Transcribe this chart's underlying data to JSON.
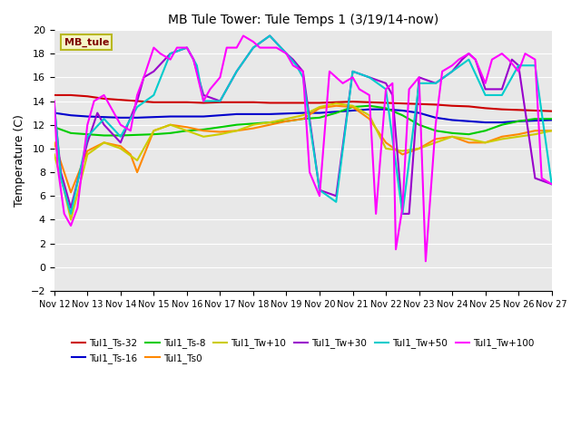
{
  "title": "MB Tule Tower: Tule Temps 1 (3/19/14-now)",
  "ylabel": "Temperature (C)",
  "ylim": [
    -2,
    20
  ],
  "yticks": [
    -2,
    0,
    2,
    4,
    6,
    8,
    10,
    12,
    14,
    16,
    18,
    20
  ],
  "xlim": [
    0,
    15
  ],
  "xtick_labels": [
    "Nov 12",
    "Nov 13",
    "Nov 14",
    "Nov 15",
    "Nov 16",
    "Nov 17",
    "Nov 18",
    "Nov 19",
    "Nov 20",
    "Nov 21",
    "Nov 22",
    "Nov 23",
    "Nov 24",
    "Nov 25",
    "Nov 26",
    "Nov 27"
  ],
  "bg_color": "#e8e8e8",
  "inset_label": "MB_tule",
  "inset_bg": "#f5f5c8",
  "inset_border": "#b8b820",
  "inset_text_color": "#800000",
  "series": [
    {
      "label": "Tul1_Ts-32",
      "color": "#cc0000",
      "lw": 1.5,
      "x": [
        0.0,
        0.5,
        1.0,
        1.5,
        2.0,
        2.5,
        3.0,
        3.5,
        4.0,
        4.5,
        5.0,
        5.5,
        6.0,
        6.5,
        7.0,
        7.5,
        8.0,
        8.5,
        9.0,
        9.5,
        10.0,
        10.5,
        11.0,
        11.5,
        12.0,
        12.5,
        13.0,
        13.5,
        14.0,
        14.5,
        15.0
      ],
      "y": [
        14.5,
        14.5,
        14.4,
        14.2,
        14.1,
        14.0,
        13.9,
        13.9,
        13.9,
        13.85,
        13.9,
        13.9,
        13.9,
        13.85,
        13.85,
        13.85,
        13.85,
        13.9,
        13.95,
        13.9,
        13.85,
        13.8,
        13.75,
        13.7,
        13.6,
        13.55,
        13.4,
        13.3,
        13.25,
        13.2,
        13.15
      ]
    },
    {
      "label": "Tul1_Ts-16",
      "color": "#0000cc",
      "lw": 1.5,
      "x": [
        0.0,
        0.5,
        1.0,
        1.5,
        2.0,
        2.5,
        3.0,
        3.5,
        4.0,
        4.5,
        5.0,
        5.5,
        6.0,
        6.5,
        7.0,
        7.5,
        8.0,
        8.5,
        9.0,
        9.5,
        10.0,
        10.5,
        11.0,
        11.5,
        12.0,
        12.5,
        13.0,
        13.5,
        14.0,
        14.5,
        15.0
      ],
      "y": [
        13.0,
        12.8,
        12.7,
        12.65,
        12.6,
        12.6,
        12.65,
        12.7,
        12.7,
        12.7,
        12.8,
        12.9,
        12.9,
        12.9,
        12.95,
        13.0,
        13.0,
        13.1,
        13.2,
        13.3,
        13.3,
        13.2,
        13.0,
        12.6,
        12.4,
        12.3,
        12.2,
        12.2,
        12.3,
        12.35,
        12.4
      ]
    },
    {
      "label": "Tul1_Ts-8",
      "color": "#00cc00",
      "lw": 1.5,
      "x": [
        0.0,
        0.5,
        1.0,
        1.5,
        2.0,
        2.5,
        3.0,
        3.5,
        4.0,
        4.5,
        5.0,
        5.5,
        6.0,
        6.5,
        7.0,
        7.5,
        8.0,
        8.5,
        9.0,
        9.5,
        10.0,
        10.5,
        11.0,
        11.5,
        12.0,
        12.5,
        13.0,
        13.5,
        14.0,
        14.5,
        15.0
      ],
      "y": [
        11.8,
        11.3,
        11.2,
        11.1,
        11.1,
        11.15,
        11.2,
        11.3,
        11.5,
        11.6,
        11.8,
        12.0,
        12.1,
        12.2,
        12.3,
        12.5,
        12.6,
        13.0,
        13.5,
        13.6,
        13.4,
        12.8,
        12.0,
        11.5,
        11.3,
        11.2,
        11.5,
        12.0,
        12.3,
        12.5,
        12.5
      ]
    },
    {
      "label": "Tul1_Ts0",
      "color": "#ff8800",
      "lw": 1.5,
      "x": [
        0.0,
        0.3,
        0.5,
        1.0,
        1.5,
        2.0,
        2.3,
        2.5,
        3.0,
        3.5,
        4.0,
        4.5,
        5.0,
        5.5,
        6.0,
        6.5,
        7.0,
        7.5,
        8.0,
        8.5,
        9.0,
        9.5,
        10.0,
        10.5,
        11.0,
        11.5,
        12.0,
        12.5,
        13.0,
        13.5,
        14.0,
        14.5,
        15.0
      ],
      "y": [
        10.5,
        8.0,
        6.3,
        9.8,
        10.5,
        10.2,
        9.5,
        8.0,
        11.5,
        12.0,
        11.8,
        11.5,
        11.4,
        11.5,
        11.7,
        12.0,
        12.3,
        12.5,
        13.4,
        13.6,
        13.5,
        12.5,
        10.5,
        9.5,
        10.0,
        10.8,
        11.0,
        10.5,
        10.5,
        11.0,
        11.2,
        11.5,
        11.5
      ]
    },
    {
      "label": "Tul1_Tw+10",
      "color": "#cccc00",
      "lw": 1.5,
      "x": [
        0.0,
        0.3,
        0.5,
        1.0,
        1.5,
        2.0,
        2.5,
        3.0,
        3.5,
        4.0,
        4.5,
        5.0,
        5.5,
        6.0,
        6.5,
        7.0,
        7.5,
        8.0,
        8.5,
        9.0,
        9.5,
        10.0,
        10.5,
        11.0,
        11.5,
        12.0,
        12.5,
        13.0,
        13.5,
        14.0,
        14.5,
        15.0
      ],
      "y": [
        9.5,
        6.5,
        4.0,
        9.5,
        10.5,
        10.0,
        9.0,
        11.5,
        12.0,
        11.5,
        11.0,
        11.2,
        11.5,
        12.0,
        12.2,
        12.5,
        12.8,
        13.5,
        13.8,
        13.6,
        12.8,
        10.0,
        9.8,
        10.0,
        10.5,
        11.0,
        10.8,
        10.5,
        10.8,
        11.0,
        11.2,
        11.5
      ]
    },
    {
      "label": "Tul1_Tw+30",
      "color": "#9900cc",
      "lw": 1.5,
      "x": [
        0.0,
        0.2,
        0.5,
        1.0,
        1.3,
        1.5,
        2.0,
        2.5,
        2.7,
        3.0,
        3.5,
        4.0,
        4.2,
        4.5,
        5.0,
        5.5,
        6.0,
        6.5,
        7.0,
        7.2,
        7.5,
        8.0,
        8.5,
        9.0,
        9.5,
        10.0,
        10.2,
        10.5,
        10.7,
        11.0,
        11.5,
        12.0,
        12.3,
        12.5,
        12.7,
        13.0,
        13.5,
        13.8,
        14.0,
        14.5,
        15.0
      ],
      "y": [
        13.5,
        8.0,
        5.0,
        10.5,
        13.0,
        12.0,
        10.5,
        14.0,
        16.0,
        16.5,
        18.0,
        18.5,
        17.5,
        14.5,
        14.0,
        16.5,
        18.5,
        19.5,
        18.0,
        17.5,
        16.5,
        6.5,
        6.0,
        16.5,
        16.0,
        15.5,
        14.5,
        4.5,
        4.5,
        16.0,
        15.5,
        16.5,
        17.5,
        18.0,
        17.5,
        15.0,
        15.0,
        17.5,
        17.0,
        7.5,
        7.0
      ]
    },
    {
      "label": "Tul1_Tw+50",
      "color": "#00cccc",
      "lw": 1.5,
      "x": [
        0.0,
        0.2,
        0.5,
        1.0,
        1.5,
        2.0,
        2.5,
        3.0,
        3.5,
        4.0,
        4.3,
        4.5,
        5.0,
        5.5,
        6.0,
        6.5,
        7.0,
        7.3,
        7.5,
        8.0,
        8.5,
        9.0,
        9.5,
        10.0,
        10.5,
        11.0,
        11.5,
        12.0,
        12.5,
        13.0,
        13.5,
        14.0,
        14.5,
        15.0
      ],
      "y": [
        13.8,
        7.5,
        4.5,
        11.0,
        12.5,
        11.0,
        13.5,
        14.5,
        18.0,
        18.5,
        17.0,
        14.0,
        14.0,
        16.5,
        18.5,
        19.5,
        18.0,
        17.0,
        16.0,
        6.5,
        5.5,
        16.5,
        16.0,
        15.0,
        4.5,
        15.5,
        15.5,
        16.5,
        17.5,
        14.5,
        14.5,
        17.0,
        17.0,
        7.0
      ]
    },
    {
      "label": "Tul1_Tw+100",
      "color": "#ff00ff",
      "lw": 1.5,
      "x": [
        0.0,
        0.1,
        0.3,
        0.5,
        0.7,
        1.0,
        1.2,
        1.5,
        1.7,
        2.0,
        2.3,
        2.5,
        2.7,
        3.0,
        3.2,
        3.5,
        3.7,
        4.0,
        4.2,
        4.5,
        4.7,
        5.0,
        5.2,
        5.5,
        5.7,
        6.0,
        6.2,
        6.5,
        6.7,
        7.0,
        7.2,
        7.5,
        7.7,
        8.0,
        8.3,
        8.5,
        8.7,
        9.0,
        9.2,
        9.5,
        9.7,
        10.0,
        10.2,
        10.3,
        10.5,
        10.7,
        11.0,
        11.2,
        11.5,
        11.7,
        12.0,
        12.2,
        12.5,
        12.7,
        13.0,
        13.2,
        13.5,
        13.7,
        14.0,
        14.2,
        14.5,
        14.7,
        15.0
      ],
      "y": [
        14.0,
        8.5,
        4.5,
        3.5,
        5.0,
        12.0,
        14.0,
        14.5,
        13.5,
        12.0,
        11.5,
        14.5,
        16.0,
        18.5,
        18.0,
        17.5,
        18.5,
        18.5,
        17.5,
        14.0,
        15.0,
        16.0,
        18.5,
        18.5,
        19.5,
        19.0,
        18.5,
        18.5,
        18.5,
        18.0,
        17.0,
        16.5,
        8.0,
        6.0,
        16.5,
        16.0,
        15.5,
        16.0,
        15.0,
        14.5,
        4.5,
        15.0,
        15.5,
        1.5,
        5.0,
        15.0,
        16.0,
        0.5,
        12.0,
        16.5,
        17.0,
        17.5,
        18.0,
        17.5,
        15.5,
        17.5,
        18.0,
        17.5,
        16.5,
        18.0,
        17.5,
        7.5,
        7.0
      ]
    }
  ]
}
